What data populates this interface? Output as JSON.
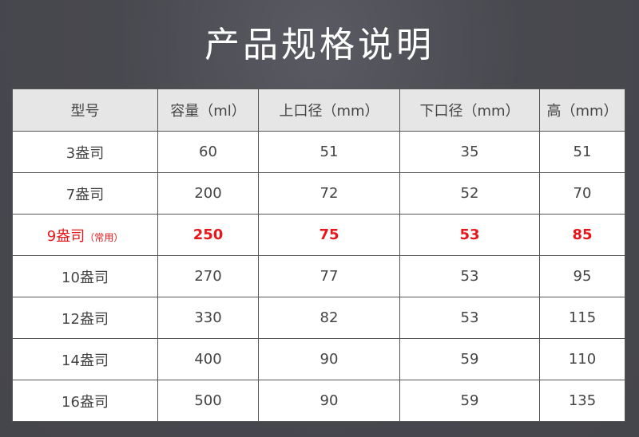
{
  "title": "产品规格说明",
  "table": {
    "headers": [
      "型号",
      "容量（ml）",
      "上口径（mm）",
      "下口径（mm）",
      "高（mm）"
    ],
    "rows": [
      {
        "cells": [
          "3盎司",
          "60",
          "51",
          "35",
          "51"
        ],
        "note": ""
      },
      {
        "cells": [
          "7盎司",
          "200",
          "72",
          "52",
          "70"
        ],
        "note": ""
      },
      {
        "cells": [
          "9盎司",
          "250",
          "75",
          "53",
          "85"
        ],
        "note": "（常用）",
        "highlight": true
      },
      {
        "cells": [
          "10盎司",
          "270",
          "77",
          "53",
          "95"
        ],
        "note": ""
      },
      {
        "cells": [
          "12盎司",
          "330",
          "82",
          "53",
          "115"
        ],
        "note": ""
      },
      {
        "cells": [
          "14盎司",
          "400",
          "90",
          "59",
          "110"
        ],
        "note": ""
      },
      {
        "cells": [
          "16盎司",
          "500",
          "90",
          "59",
          "135"
        ],
        "note": ""
      }
    ]
  },
  "colors": {
    "highlight": "#e8161b",
    "background": "#48484f",
    "header_bg": "#e6e6e6"
  }
}
